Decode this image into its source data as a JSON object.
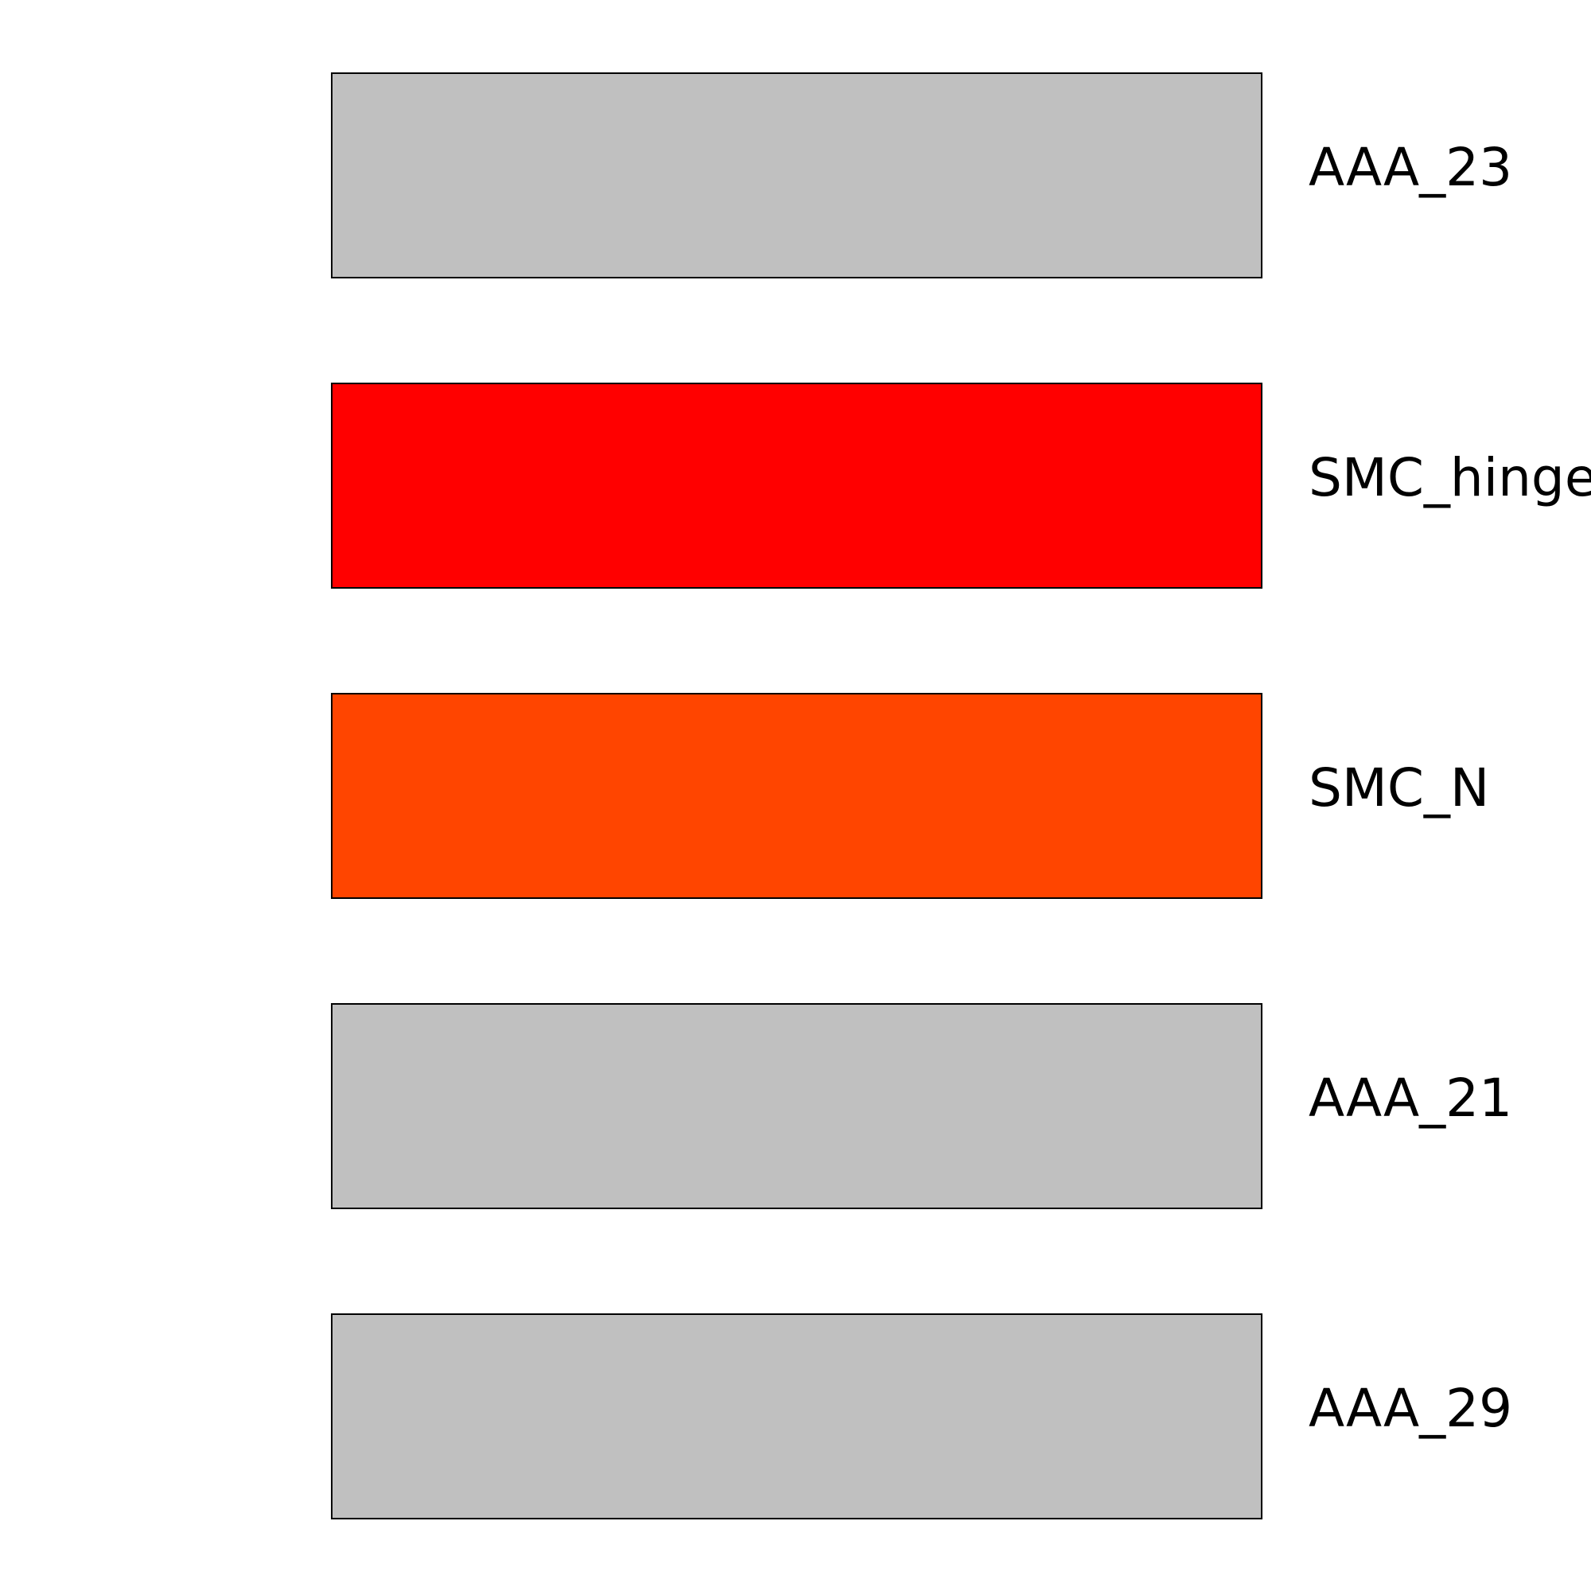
{
  "domains": [
    {
      "label": "AAA_23",
      "color": "#c0c0c0"
    },
    {
      "label": "SMC_hinge",
      "color": "#ff0000"
    },
    {
      "label": "SMC_N",
      "color": "#ff4500"
    },
    {
      "label": "AAA_21",
      "color": "#c0c0c0"
    },
    {
      "label": "AAA_29",
      "color": "#c0c0c0"
    }
  ]
}
